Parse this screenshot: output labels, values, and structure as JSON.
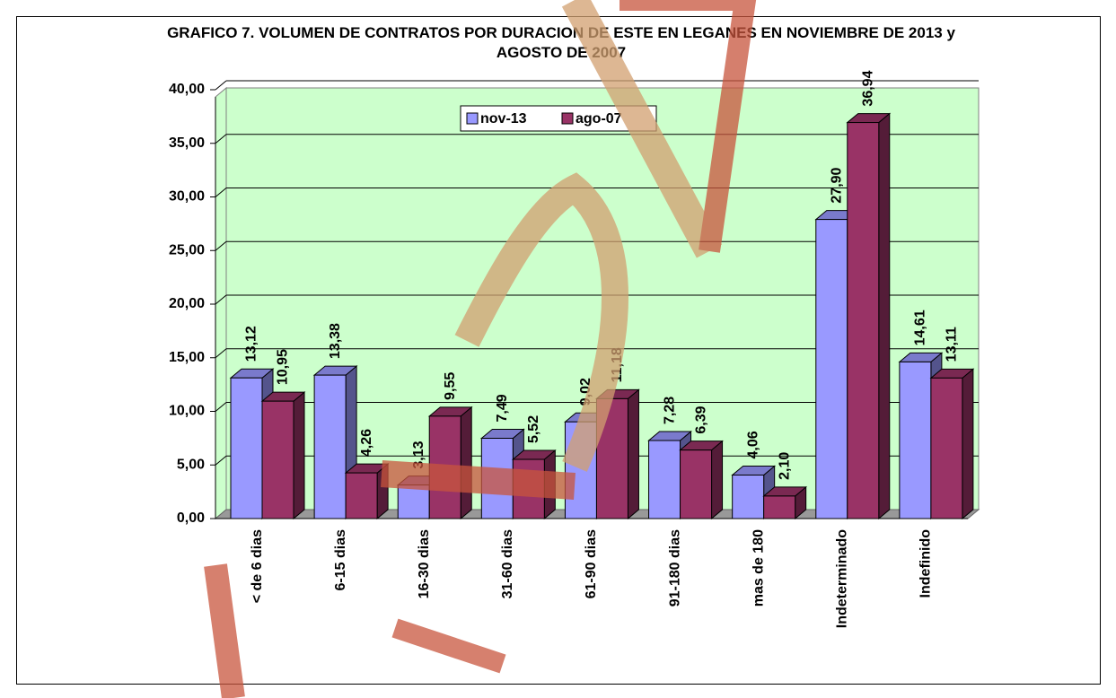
{
  "chart_data": {
    "type": "bar3d",
    "title": "GRAFICO 7. VOLUMEN DE CONTRATOS POR DURACION DE ESTE EN LEGANES EN NOVIEMBRE DE 2013 y AGOSTO DE 2007",
    "categories": [
      "< de 6 dias",
      "6-15 dias",
      "16-30 dias",
      "31-60 dias",
      "61-90 dias",
      "91-180 dias",
      "mas de 180",
      "Indeterminado",
      "Indefinido"
    ],
    "series": [
      {
        "name": "nov-13",
        "color": "#9999ff",
        "values": [
          13.12,
          13.38,
          3.13,
          7.49,
          9.02,
          7.28,
          4.06,
          27.9,
          14.61
        ],
        "value_labels": [
          "13,12",
          "13,38",
          "3,13",
          "7,49",
          "9,02",
          "7,28",
          "4,06",
          "27,90",
          "14,61"
        ]
      },
      {
        "name": "ago-07",
        "color": "#993366",
        "values": [
          10.95,
          4.26,
          9.55,
          5.52,
          11.18,
          6.39,
          2.1,
          36.94,
          13.11
        ],
        "value_labels": [
          "10,95",
          "4,26",
          "9,55",
          "5,52",
          "11,18",
          "6,39",
          "2,10",
          "36,94",
          "13,11"
        ]
      }
    ],
    "ylim": [
      0,
      40
    ],
    "yticks": [
      {
        "value": 0,
        "label": "0,00"
      },
      {
        "value": 5,
        "label": "5,00"
      },
      {
        "value": 10,
        "label": "10,00"
      },
      {
        "value": 15,
        "label": "15,00"
      },
      {
        "value": 20,
        "label": "20,00"
      },
      {
        "value": 25,
        "label": "25,00"
      },
      {
        "value": 30,
        "label": "30,00"
      },
      {
        "value": 35,
        "label": "35,00"
      },
      {
        "value": 40,
        "label": "40,00"
      }
    ],
    "grid": true,
    "legend": "top"
  }
}
